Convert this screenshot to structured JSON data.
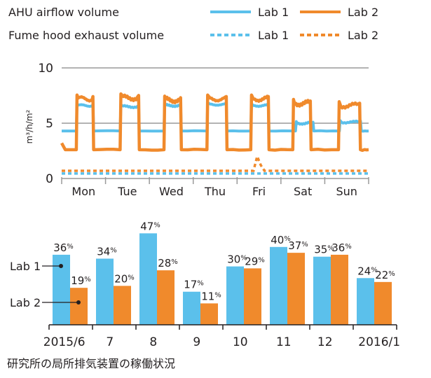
{
  "chart_data": [
    {
      "type": "line",
      "legend": {
        "placement": "top",
        "groups": [
          {
            "label": "AHU airflow volume",
            "style": "solid",
            "entries": [
              {
                "name": "Lab 1",
                "color": "#5bc0eb"
              },
              {
                "name": "Lab 2",
                "color": "#f08a2c"
              }
            ]
          },
          {
            "label": "Fume hood exhaust volume",
            "style": "dashed",
            "entries": [
              {
                "name": "Lab 1",
                "color": "#5bc0eb"
              },
              {
                "name": "Lab 2",
                "color": "#f08a2c"
              }
            ]
          }
        ]
      },
      "ylabel": "m³/h/m²",
      "ylim": [
        0,
        10
      ],
      "yticks": [
        "0",
        "5",
        "10"
      ],
      "grid": true,
      "days": [
        "Mon",
        "Tue",
        "Wed",
        "Thu",
        "Fri",
        "Sat",
        "Sun"
      ],
      "series": [
        {
          "name": "Lab 1",
          "group": "AHU airflow volume",
          "style": "solid",
          "color": "#5bc0eb",
          "day_hours": [
            [
              8,
              17.5
            ],
            [
              8,
              18.5
            ],
            [
              8,
              17.5
            ],
            [
              7.5,
              18.5
            ],
            [
              7.5,
              17.5
            ],
            [
              8,
              18
            ],
            [
              8,
              20
            ]
          ],
          "day_values": [
            6.6,
            6.5,
            6.6,
            6.7,
            6.6,
            5.0,
            5.1
          ],
          "night_value": 4.3
        },
        {
          "name": "Lab 2",
          "group": "AHU airflow volume",
          "style": "solid",
          "color": "#f08a2c",
          "day_hours": [
            [
              8,
              17.5
            ],
            [
              8,
              18.5
            ],
            [
              8,
              17.5
            ],
            [
              7.5,
              18.5
            ],
            [
              7.5,
              17.5
            ],
            [
              6.5,
              16.5
            ],
            [
              7.5,
              19.5
            ]
          ],
          "day_values": [
            7.2,
            7.3,
            7.1,
            7.2,
            7.2,
            6.8,
            6.6
          ],
          "night_value": 2.6
        },
        {
          "name": "Lab 1",
          "group": "Fume hood exhaust volume",
          "style": "dashed",
          "color": "#5bc0eb",
          "values": [
            0.45
          ]
        },
        {
          "name": "Lab 2",
          "group": "Fume hood exhaust volume",
          "style": "dashed",
          "color": "#f08a2c",
          "values": [
            0.7
          ],
          "spike": {
            "day": "Fri",
            "value": 2.0
          }
        }
      ]
    },
    {
      "type": "bar",
      "categories": [
        "2015/6",
        "7",
        "8",
        "9",
        "10",
        "11",
        "12",
        "2016/1"
      ],
      "series": [
        {
          "name": "Lab 1",
          "color": "#5bc0eb",
          "values": [
            36,
            34,
            47,
            17,
            30,
            40,
            35,
            24
          ],
          "labels": [
            "36%",
            "34%",
            "47%",
            "17%",
            "30%",
            "40%",
            "35%",
            "24%"
          ]
        },
        {
          "name": "Lab 2",
          "color": "#f08a2c",
          "values": [
            19,
            20,
            28,
            11,
            29,
            37,
            36,
            22
          ],
          "labels": [
            "19%",
            "20%",
            "28%",
            "11%",
            "29%",
            "37%",
            "36%",
            "22%"
          ]
        }
      ],
      "ylim": [
        0,
        50
      ],
      "annotation": "研究所の局所排気装置の稼働状況"
    }
  ]
}
